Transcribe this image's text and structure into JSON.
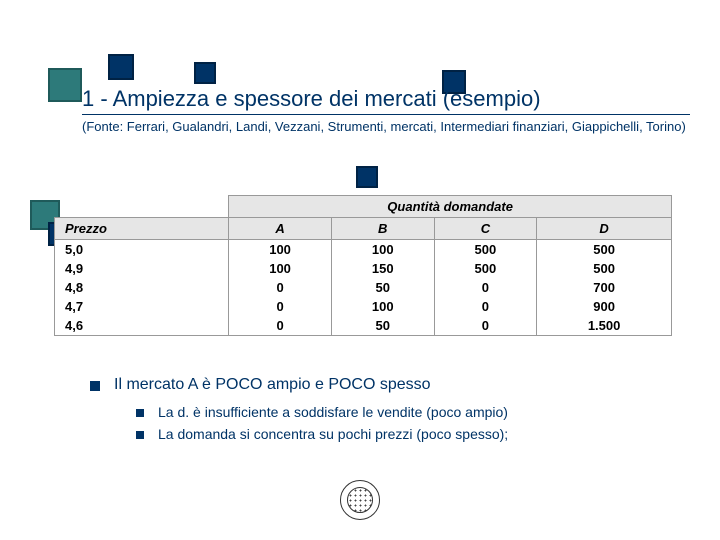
{
  "colors": {
    "navy": "#003366",
    "teal": "#2d7a7a",
    "teal_border": "#1f5a5a",
    "navy_border": "#002244"
  },
  "title": "1 - Ampiezza e spessore dei mercati (esempio)",
  "subtitle": "(Fonte: Ferrari, Gualandri, Landi, Vezzani, Strumenti, mercati, Intermediari finanziari, Giappichelli, Torino)",
  "table": {
    "super_header": "Quantità domandate",
    "first_col": "Prezzo",
    "cols": [
      "A",
      "B",
      "C",
      "D"
    ],
    "rows": [
      {
        "p": "5,0",
        "v": [
          "100",
          "100",
          "500",
          "500"
        ]
      },
      {
        "p": "4,9",
        "v": [
          "100",
          "150",
          "500",
          "500"
        ]
      },
      {
        "p": "4,8",
        "v": [
          "0",
          "50",
          "0",
          "700"
        ]
      },
      {
        "p": "4,7",
        "v": [
          "0",
          "100",
          "0",
          "900"
        ]
      },
      {
        "p": "4,6",
        "v": [
          "0",
          "50",
          "0",
          "1.500"
        ]
      }
    ]
  },
  "bullet_main": "Il mercato A è POCO ampio e POCO spesso",
  "bullet_sub1": "La d. è insufficiente a soddisfare le vendite (poco ampio)",
  "bullet_sub2": "La domanda si concentra su pochi prezzi (poco spesso);"
}
